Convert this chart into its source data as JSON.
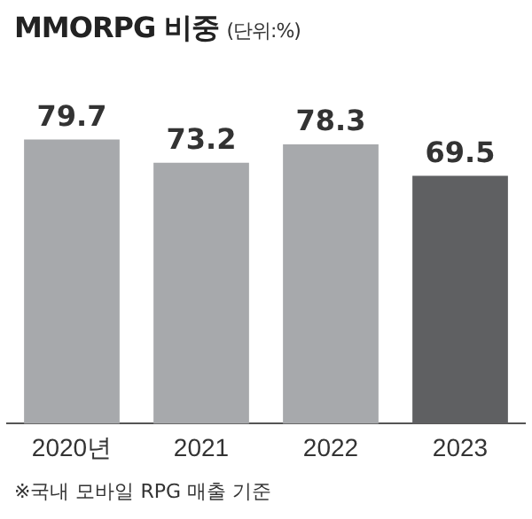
{
  "chart_data": {
    "type": "bar",
    "title": "MMORPG 비중",
    "subtitle": "(단위:%)",
    "categories": [
      "2020년",
      "2021",
      "2022",
      "2023"
    ],
    "values": [
      79.7,
      73.2,
      78.3,
      69.5
    ],
    "colors": [
      "#a7a9ac",
      "#a7a9ac",
      "#a7a9ac",
      "#5f6062"
    ],
    "data_labels": true,
    "grid": false,
    "legend": false,
    "annotations": [
      "※국내 모바일 RPG 매출 기준"
    ]
  }
}
